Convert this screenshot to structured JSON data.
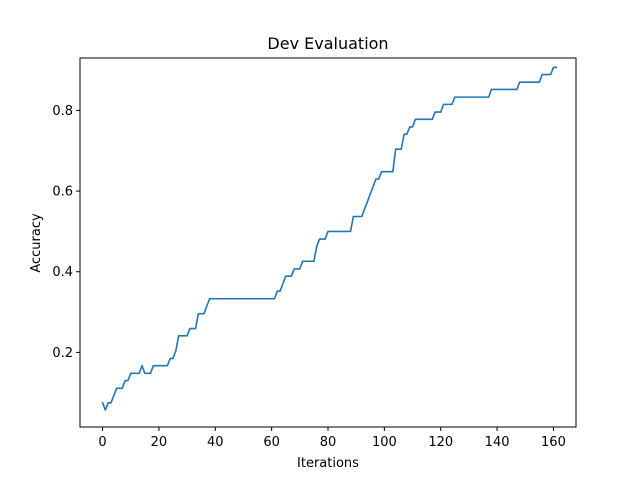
{
  "chart_data": {
    "type": "line",
    "title": "Dev Evaluation",
    "xlabel": "Iterations",
    "ylabel": "Accuracy",
    "xlim": [
      -8,
      168
    ],
    "ylim": [
      0.015,
      0.93
    ],
    "xticks": [
      0,
      20,
      40,
      60,
      80,
      100,
      120,
      140,
      160
    ],
    "yticks": [
      0.2,
      0.4,
      0.6,
      0.8
    ],
    "ytick_labels": [
      "0.2",
      "0.4",
      "0.6",
      "0.8"
    ],
    "grid": false,
    "legend": null,
    "series": [
      {
        "name": "accuracy",
        "color": "#1f77b4",
        "x": [
          0,
          1,
          2,
          3,
          4,
          5,
          6,
          7,
          8,
          9,
          10,
          11,
          12,
          13,
          14,
          15,
          16,
          17,
          18,
          19,
          20,
          21,
          22,
          23,
          24,
          25,
          26,
          27,
          28,
          29,
          30,
          31,
          32,
          33,
          34,
          35,
          36,
          37,
          38,
          39,
          40,
          50,
          60,
          61,
          62,
          63,
          64,
          65,
          66,
          67,
          68,
          69,
          70,
          71,
          72,
          73,
          74,
          75,
          76,
          77,
          78,
          79,
          80,
          82,
          84,
          86,
          88,
          89,
          90,
          91,
          92,
          93,
          94,
          95,
          96,
          97,
          98,
          99,
          100,
          101,
          102,
          103,
          104,
          105,
          106,
          107,
          108,
          109,
          110,
          111,
          112,
          113,
          114,
          115,
          116,
          117,
          118,
          119,
          120,
          121,
          122,
          123,
          124,
          125,
          130,
          135,
          137,
          138,
          140,
          145,
          147,
          148,
          150,
          154,
          155,
          156,
          157,
          158,
          159,
          160,
          161
        ],
        "y": [
          0.075,
          0.057,
          0.075,
          0.075,
          0.093,
          0.111,
          0.111,
          0.111,
          0.13,
          0.13,
          0.148,
          0.148,
          0.148,
          0.148,
          0.167,
          0.148,
          0.148,
          0.148,
          0.167,
          0.167,
          0.167,
          0.167,
          0.167,
          0.167,
          0.185,
          0.185,
          0.204,
          0.241,
          0.241,
          0.241,
          0.241,
          0.259,
          0.259,
          0.259,
          0.296,
          0.296,
          0.296,
          0.315,
          0.333,
          0.333,
          0.333,
          0.333,
          0.333,
          0.333,
          0.352,
          0.352,
          0.37,
          0.389,
          0.389,
          0.389,
          0.407,
          0.407,
          0.407,
          0.426,
          0.426,
          0.426,
          0.426,
          0.426,
          0.463,
          0.481,
          0.481,
          0.481,
          0.5,
          0.5,
          0.5,
          0.5,
          0.5,
          0.537,
          0.537,
          0.537,
          0.537,
          0.556,
          0.574,
          0.593,
          0.611,
          0.63,
          0.63,
          0.648,
          0.648,
          0.648,
          0.648,
          0.648,
          0.704,
          0.704,
          0.704,
          0.741,
          0.741,
          0.759,
          0.759,
          0.778,
          0.778,
          0.778,
          0.778,
          0.778,
          0.778,
          0.778,
          0.796,
          0.796,
          0.796,
          0.815,
          0.815,
          0.815,
          0.815,
          0.833,
          0.833,
          0.833,
          0.833,
          0.852,
          0.852,
          0.852,
          0.852,
          0.87,
          0.87,
          0.87,
          0.87,
          0.889,
          0.889,
          0.889,
          0.889,
          0.907,
          0.907
        ]
      }
    ]
  }
}
